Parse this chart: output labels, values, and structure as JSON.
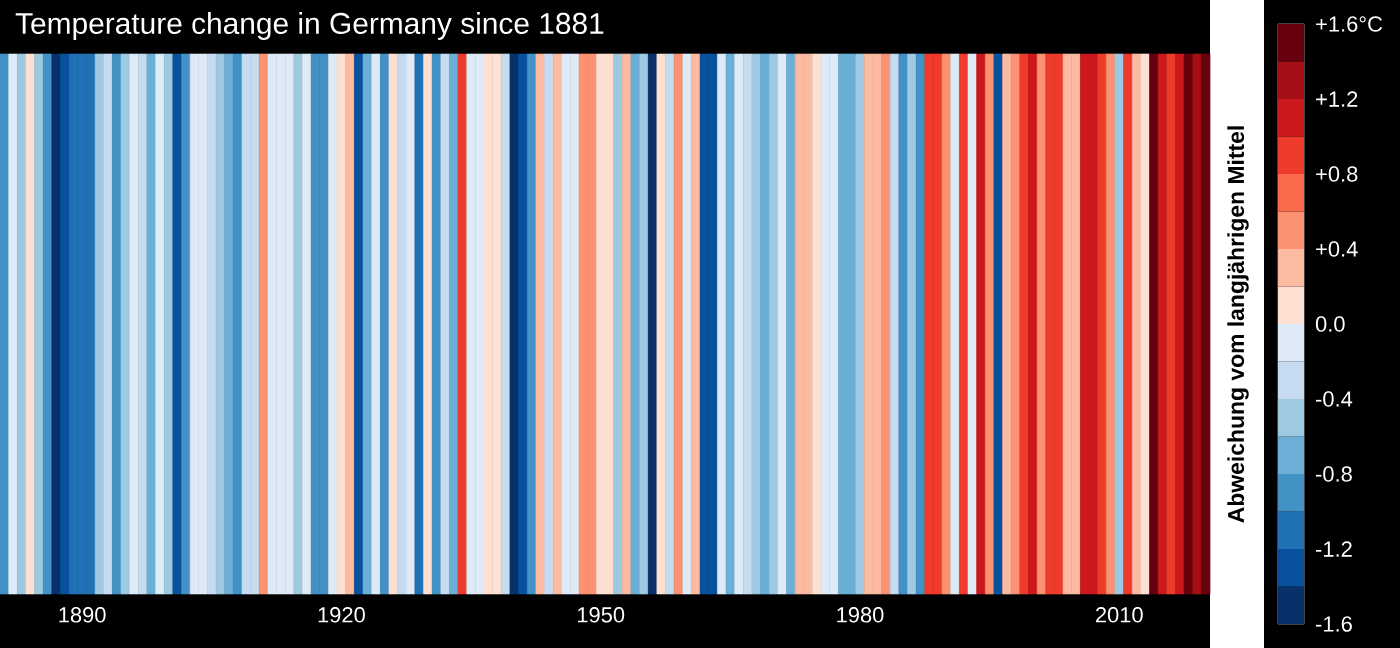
{
  "chart_data": {
    "type": "heatmap",
    "title": "Temperature change in Germany since 1881",
    "categories": [
      null,
      null,
      null,
      null,
      null,
      null,
      null,
      null,
      null,
      "1890",
      null,
      null,
      null,
      null,
      null,
      null,
      null,
      null,
      null,
      null,
      null,
      null,
      null,
      null,
      null,
      null,
      null,
      null,
      null,
      null,
      null,
      null,
      null,
      null,
      null,
      null,
      null,
      null,
      null,
      "1920",
      null,
      null,
      null,
      null,
      null,
      null,
      null,
      null,
      null,
      null,
      null,
      null,
      null,
      null,
      null,
      null,
      null,
      null,
      null,
      null,
      null,
      null,
      null,
      null,
      null,
      null,
      null,
      null,
      null,
      "1950",
      null,
      null,
      null,
      null,
      null,
      null,
      null,
      null,
      null,
      null,
      null,
      null,
      null,
      null,
      null,
      null,
      null,
      null,
      null,
      null,
      null,
      null,
      null,
      null,
      null,
      null,
      null,
      null,
      null,
      "1980",
      null,
      null,
      null,
      null,
      null,
      null,
      null,
      null,
      null,
      null,
      null,
      null,
      null,
      null,
      null,
      null,
      null,
      null,
      null,
      null,
      null,
      null,
      null,
      null,
      null,
      null,
      null,
      null,
      null,
      "2010",
      null,
      null,
      null,
      null,
      null,
      null,
      null,
      null,
      null,
      null
    ],
    "cells": [
      [
        -0.9,
        -0.1,
        -0.5,
        0.1,
        -0.5,
        -0.9,
        -1.5,
        -1.3,
        -1.1,
        -1.1,
        -1.1,
        -0.5,
        -0.3,
        -0.9,
        -0.5,
        -0.1,
        -0.3,
        -0.7,
        -0.1,
        -0.5,
        -1.3,
        -0.9,
        -0.1,
        -0.1,
        -0.3,
        -0.5,
        -0.7,
        -0.9,
        -0.3,
        -0.3,
        0.5,
        -0.1,
        -0.1,
        -0.1,
        -0.5,
        -0.1,
        -0.9,
        -0.9,
        -0.1,
        0.1,
        0.3,
        -1.3,
        -0.7,
        -0.1,
        -0.9,
        0.1,
        -0.3,
        -0.1,
        -1.1,
        0.1,
        -0.9,
        -0.3,
        -0.7,
        0.9,
        -0.1,
        -0.1,
        0.1,
        0.1,
        -0.3,
        -1.5,
        -1.3,
        -0.9,
        0.3,
        -0.3,
        0.3,
        -0.1,
        -0.1,
        0.5,
        0.5,
        0.1,
        0.1,
        -0.5,
        0.3,
        -0.7,
        -0.5,
        -1.5,
        0.1,
        -0.3,
        0.5,
        -0.1,
        0.3,
        -1.3,
        -1.3,
        -0.1,
        -0.7,
        -0.1,
        -0.3,
        -0.5,
        -0.7,
        -0.5,
        -0.1,
        -0.7,
        0.3,
        0.3,
        0.1,
        -0.1,
        -0.1,
        -0.7,
        -0.7,
        -0.5,
        0.3,
        0.3,
        0.5,
        -0.3,
        -0.9,
        -0.5,
        -0.9,
        0.9,
        0.9,
        0.5,
        -0.1,
        0.9,
        -0.1,
        1.1,
        0.5,
        -1.3,
        0.3,
        0.5,
        0.9,
        1.1,
        0.5,
        0.9,
        0.9,
        0.3,
        0.3,
        1.1,
        1.1,
        0.9,
        0.5,
        -0.5,
        0.9,
        0.3,
        0.1,
        1.5,
        1.1,
        0.9,
        1.1,
        1.5,
        1.3,
        1.5
      ]
    ],
    "y_categories": [
      null
    ],
    "clim": [
      -1.6,
      1.6
    ],
    "cticks": [
      {
        "value": -1.6,
        "label": "-1.6"
      },
      {
        "value": -1.2,
        "label": "-1.2"
      },
      {
        "value": -0.8,
        "label": "-0.8"
      },
      {
        "value": -0.4,
        "label": "-0.4"
      },
      {
        "value": 0,
        "label": "0.0"
      },
      {
        "value": 0.4,
        "label": "+0.4"
      },
      {
        "value": 0.8,
        "label": "+0.8"
      },
      {
        "value": 1.2,
        "label": "+1.2"
      },
      {
        "value": 1.6,
        "label": "+1.6°C"
      }
    ],
    "clabel": "Abweichung vom langjährigen Mittel"
  }
}
